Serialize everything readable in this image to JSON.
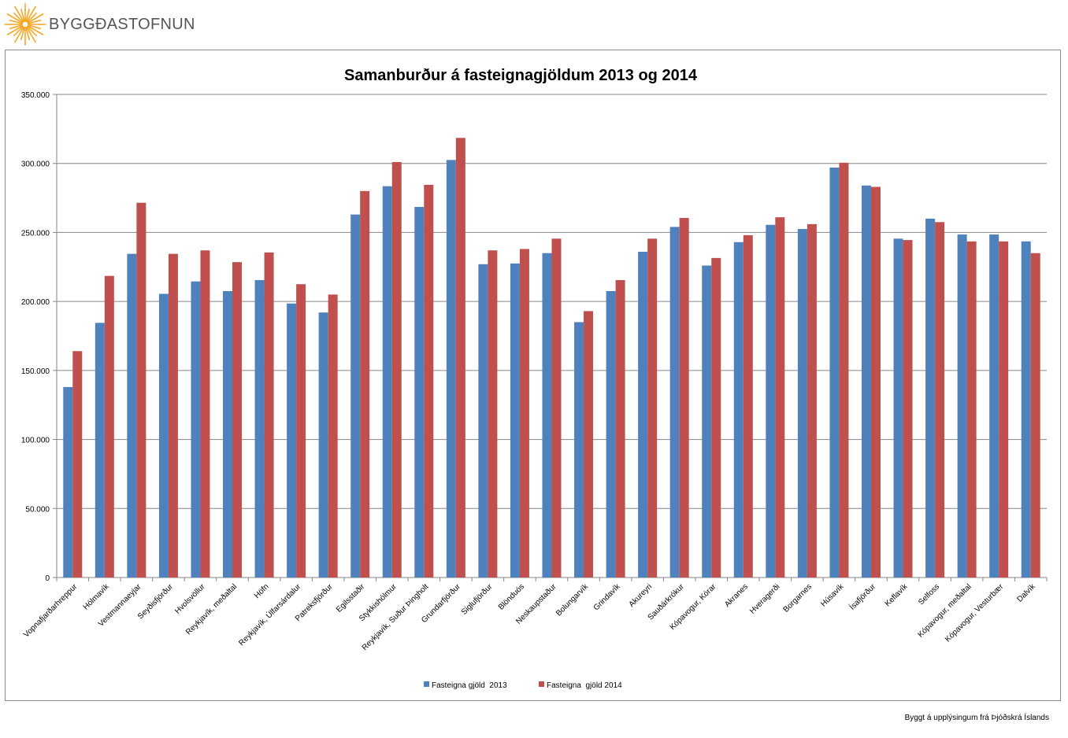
{
  "brand": {
    "name": "BYGGÐASTOFNUN",
    "logo_color": "#f5a623"
  },
  "source_note": "Byggt á upplýsingum frá Þjóðskrá Íslands",
  "chart_data": {
    "type": "bar",
    "title": "Samanburður á fasteignagjöldum 2013 og 2014",
    "xlabel": "",
    "ylabel": "",
    "ylim": [
      0,
      350000
    ],
    "yticks": [
      0,
      50000,
      100000,
      150000,
      200000,
      250000,
      300000,
      350000
    ],
    "ytick_labels": [
      "0",
      "50.000",
      "100.000",
      "150.000",
      "200.000",
      "250.000",
      "300.000",
      "350.000"
    ],
    "grid": true,
    "legend_position": "bottom",
    "categories": [
      "Vopnafjarðarhreppur",
      "Hólmavík",
      "Vestmannaeyjar",
      "Seyðisfjörður",
      "Hvolsvöllur",
      "Reykjavík, meðaltal",
      "Höfn",
      "Reykjavík, Úlfarsárdalur",
      "Patreksfjörður",
      "Egilsstaðir",
      "Stykkishólmur",
      "Reykjavík, Suður Þingholt",
      "Grundarfjörður",
      "Siglufjörður",
      "Blönduós",
      "Neskaupstaður",
      "Bolungarvík",
      "Grindavík",
      "Akureyri",
      "Sauðárkrókur",
      "Kópavogur, Kórar",
      "Akranes",
      "Hveragerði",
      "Borgarnes",
      "Húsavík",
      "Ísafjörður",
      "Keflavík",
      "Selfoss",
      "Kópavogur, meðaltal",
      "Kópavogur, Vesturbær",
      "Dalvík"
    ],
    "series": [
      {
        "name": "Fasteigna gjöld  2013",
        "color": "#4f81bd",
        "values": [
          138000,
          184500,
          234500,
          205500,
          214500,
          207500,
          215500,
          198500,
          192000,
          263000,
          283500,
          268500,
          302500,
          227000,
          227500,
          235000,
          185000,
          207500,
          236000,
          254000,
          226000,
          243000,
          255500,
          252500,
          297000,
          284000,
          245500,
          260000,
          248500,
          248500,
          243500
        ]
      },
      {
        "name": "Fasteigna  gjöld 2014",
        "color": "#c0504d",
        "values": [
          164000,
          218500,
          271500,
          234500,
          237000,
          228500,
          235500,
          212500,
          205000,
          280000,
          301000,
          284500,
          318500,
          237000,
          238000,
          245500,
          193000,
          215500,
          245500,
          260500,
          231500,
          248000,
          261000,
          256000,
          300500,
          283000,
          244500,
          257500,
          243500,
          243500,
          235000
        ]
      }
    ]
  }
}
